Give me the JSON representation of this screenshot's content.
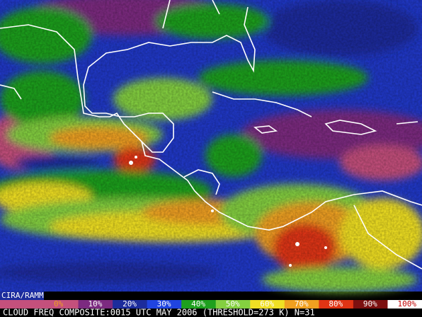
{
  "credit": "CIRA/RAMM",
  "legend": [
    {
      "label": "0%",
      "color": "#c4507c"
    },
    {
      "label": "10%",
      "color": "#7c2a80"
    },
    {
      "label": "20%",
      "color": "#1c2c9c"
    },
    {
      "label": "30%",
      "color": "#2044e0"
    },
    {
      "label": "40%",
      "color": "#1ea01e"
    },
    {
      "label": "50%",
      "color": "#84d040"
    },
    {
      "label": "60%",
      "color": "#f0e024"
    },
    {
      "label": "70%",
      "color": "#f0a020"
    },
    {
      "label": "80%",
      "color": "#e03414"
    },
    {
      "label": "90%",
      "color": "#7c1010"
    },
    {
      "label": "100%",
      "color": "#ffffff"
    }
  ],
  "caption": "CLOUD FREQ COMPOSITE:0015 UTC MAY 2006 (THRESHOLD=273 K) N=31"
}
